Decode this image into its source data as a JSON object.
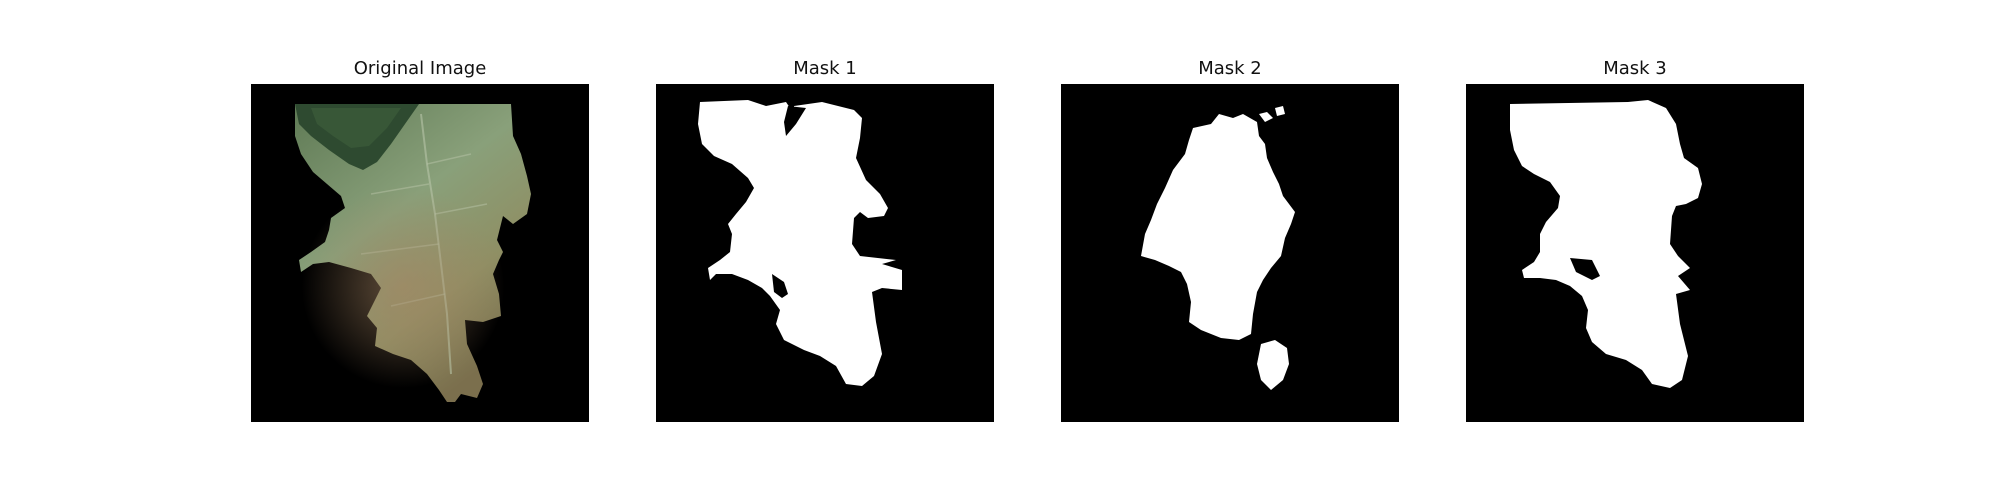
{
  "figure": {
    "panels": [
      {
        "title": "Original Image"
      },
      {
        "title": "Mask 1"
      },
      {
        "title": "Mask 2"
      },
      {
        "title": "Mask 3"
      }
    ]
  },
  "colors": {
    "background": "#000000",
    "mask": "#ffffff",
    "leaf_green": "#6f8a62",
    "leaf_dark": "#2f4a31",
    "leaf_brown": "#9a8a5a"
  }
}
